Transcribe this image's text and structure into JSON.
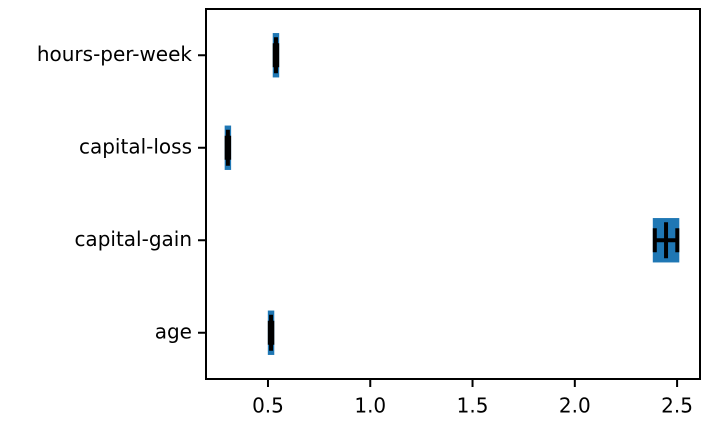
{
  "chart_data": {
    "type": "hbar_errorbar",
    "categories": [
      "hours-per-week",
      "capital-loss",
      "capital-gain",
      "age"
    ],
    "values": [
      0.539,
      0.304,
      2.446,
      0.515
    ],
    "errors": [
      0.006,
      0.006,
      0.055,
      0.006
    ],
    "color": "#1f77b4",
    "xlim": [
      0.197,
      2.612
    ],
    "xticks": [
      0.5,
      1.0,
      1.5,
      2.0,
      2.5
    ]
  }
}
